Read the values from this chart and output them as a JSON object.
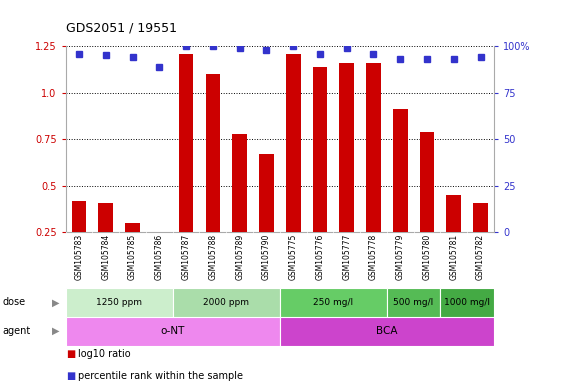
{
  "title": "GDS2051 / 19551",
  "samples": [
    "GSM105783",
    "GSM105784",
    "GSM105785",
    "GSM105786",
    "GSM105787",
    "GSM105788",
    "GSM105789",
    "GSM105790",
    "GSM105775",
    "GSM105776",
    "GSM105777",
    "GSM105778",
    "GSM105779",
    "GSM105780",
    "GSM105781",
    "GSM105782"
  ],
  "log10_ratio": [
    0.42,
    0.41,
    0.3,
    0.24,
    1.21,
    1.1,
    0.78,
    0.67,
    1.21,
    1.14,
    1.16,
    1.16,
    0.91,
    0.79,
    0.45,
    0.41
  ],
  "percentile_rank": [
    96,
    95,
    94,
    89,
    100,
    100,
    99,
    98,
    100,
    96,
    99,
    96,
    93,
    93,
    93,
    94
  ],
  "bar_color": "#cc0000",
  "dot_color": "#3333cc",
  "ylim_left": [
    0.25,
    1.25
  ],
  "ylim_right": [
    0,
    100
  ],
  "yticks_left": [
    0.25,
    0.5,
    0.75,
    1.0,
    1.25
  ],
  "yticks_right": [
    0,
    25,
    50,
    75,
    100
  ],
  "dose_groups": [
    {
      "label": "1250 ppm",
      "start": 0,
      "end": 4,
      "color": "#cceecc"
    },
    {
      "label": "2000 ppm",
      "start": 4,
      "end": 8,
      "color": "#aaddaa"
    },
    {
      "label": "250 mg/l",
      "start": 8,
      "end": 12,
      "color": "#66cc66"
    },
    {
      "label": "500 mg/l",
      "start": 12,
      "end": 14,
      "color": "#55bb55"
    },
    {
      "label": "1000 mg/l",
      "start": 14,
      "end": 16,
      "color": "#44aa44"
    }
  ],
  "agent_groups": [
    {
      "label": "o-NT",
      "start": 0,
      "end": 8,
      "color": "#ee88ee"
    },
    {
      "label": "BCA",
      "start": 8,
      "end": 16,
      "color": "#cc44cc"
    }
  ],
  "bg_color": "#ffffff",
  "title_fontsize": 9,
  "bar_width": 0.55
}
